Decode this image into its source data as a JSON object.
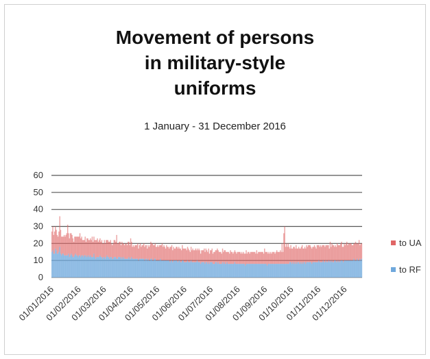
{
  "chart_data": {
    "type": "area",
    "title_lines": [
      "Movement of persons",
      "in military-style",
      "uniforms"
    ],
    "subtitle": "1 January - 31 December 2016",
    "ylim": [
      0,
      60
    ],
    "yticks": [
      0,
      10,
      20,
      30,
      40,
      50,
      60
    ],
    "grid": true,
    "stacked": true,
    "x_tick_labels": [
      "01/01/2016",
      "01/02/2016",
      "01/03/2016",
      "01/04/2016",
      "01/05/2016",
      "01/06/2016",
      "01/07/2016",
      "01/08/2016",
      "01/09/2016",
      "01/10/2016",
      "01/11/2016",
      "01/12/2016"
    ],
    "legend_position": "right",
    "series": [
      {
        "name": "to UA",
        "color": "#e06666",
        "values": [
          12,
          14,
          11,
          13,
          13,
          12,
          11,
          10,
          12,
          18,
          14,
          11,
          10,
          10,
          12,
          11,
          12,
          13,
          18,
          12,
          11,
          13,
          12,
          12,
          11,
          9,
          11,
          10,
          11,
          11,
          12,
          11,
          13,
          11,
          11,
          9,
          10,
          9,
          11,
          9,
          10,
          11,
          9,
          10,
          10,
          10,
          12,
          9,
          10,
          10,
          11,
          10,
          11,
          9,
          10,
          10,
          9,
          10,
          9,
          8,
          10,
          9,
          10,
          9,
          10,
          9,
          10,
          10,
          8,
          8,
          9,
          10,
          10,
          9,
          14,
          9,
          8,
          9,
          9,
          8,
          9,
          9,
          8,
          8,
          9,
          9,
          8,
          10,
          9,
          8,
          12,
          9,
          7,
          8,
          7,
          8,
          8,
          8,
          9,
          7,
          8,
          9,
          7,
          8,
          8,
          9,
          8,
          8,
          8,
          7,
          8,
          8,
          9,
          10,
          9,
          10,
          9,
          8,
          9,
          8,
          8,
          9,
          8,
          9,
          8,
          9,
          10,
          8,
          9,
          8,
          7,
          9,
          8,
          8,
          7,
          9,
          8,
          9,
          7,
          8,
          7,
          7,
          8,
          8,
          8,
          8,
          7,
          8,
          7,
          9,
          7,
          8,
          8,
          8,
          7,
          8,
          8,
          7,
          6,
          8,
          7,
          8,
          7,
          7,
          8,
          7,
          7,
          7,
          8,
          7,
          6,
          7,
          7,
          7,
          8,
          7,
          8,
          7,
          7,
          8,
          6,
          7,
          7,
          8,
          6,
          7,
          7,
          7,
          7,
          9,
          7,
          7,
          7,
          7,
          6,
          8,
          7,
          7,
          8,
          7,
          6,
          7,
          7,
          6,
          8,
          7,
          7,
          6,
          7,
          7,
          7,
          6,
          7,
          7,
          7,
          7,
          6,
          7,
          6,
          7,
          6,
          7,
          8,
          6,
          7,
          7,
          6,
          7,
          7,
          7,
          7,
          7,
          7,
          6,
          8,
          6,
          7,
          7,
          7,
          7,
          7,
          7,
          6,
          9,
          7,
          7,
          8,
          6,
          7,
          6,
          7,
          6,
          7,
          7,
          7,
          6,
          7,
          8,
          7,
          7,
          7,
          8,
          7,
          12,
          7,
          18,
          22,
          10,
          12,
          10,
          12,
          10,
          8,
          10,
          9,
          8,
          10,
          9,
          9,
          10,
          9,
          8,
          9,
          9,
          8,
          10,
          10,
          9,
          8,
          9,
          9,
          10,
          9,
          10,
          10,
          10,
          9,
          9,
          9,
          9,
          10,
          9,
          8,
          10,
          10,
          9,
          9,
          10,
          9,
          10,
          9,
          10,
          9,
          9,
          10,
          10,
          9,
          8,
          11,
          9,
          10,
          10,
          10,
          8,
          9,
          9,
          10,
          10,
          9,
          10,
          10,
          11,
          8,
          9,
          10,
          9,
          10,
          11,
          9,
          10,
          10,
          10,
          10,
          9,
          9,
          9,
          10,
          11,
          10,
          9,
          10,
          12,
          8,
          10,
          9,
          10,
          10,
          10,
          11,
          10,
          11
        ]
      },
      {
        "name": "to RF",
        "color": "#6fa8dc",
        "values": [
          15,
          16,
          14,
          14,
          17,
          16,
          14,
          14,
          15,
          18,
          14,
          13,
          14,
          14,
          13,
          13,
          13,
          13,
          13,
          14,
          12,
          13,
          14,
          13,
          12,
          12,
          13,
          14,
          13,
          13,
          12,
          13,
          13,
          12,
          13,
          13,
          12,
          13,
          13,
          12,
          13,
          12,
          13,
          12,
          13,
          12,
          12,
          12,
          14,
          12,
          11,
          12,
          12,
          12,
          12,
          13,
          12,
          12,
          11,
          12,
          12,
          11,
          12,
          13,
          12,
          12,
          11,
          12,
          12,
          11,
          11,
          12,
          12,
          12,
          11,
          11,
          12,
          12,
          12,
          11,
          12,
          11,
          12,
          11,
          11,
          11,
          11,
          11,
          12,
          11,
          11,
          12,
          11,
          11,
          11,
          11,
          11,
          11,
          11,
          10,
          11,
          11,
          11,
          11,
          11,
          11,
          10,
          11,
          11,
          10,
          11,
          10,
          10,
          11,
          11,
          10,
          10,
          11,
          11,
          10,
          10,
          10,
          10,
          10,
          11,
          10,
          10,
          10,
          10,
          10,
          10,
          10,
          10,
          10,
          10,
          9,
          10,
          10,
          9,
          10,
          10,
          10,
          10,
          10,
          9,
          10,
          10,
          9,
          9,
          10,
          10,
          9,
          9,
          9,
          9,
          10,
          9,
          9,
          9,
          10,
          9,
          9,
          9,
          9,
          9,
          9,
          10,
          9,
          9,
          9,
          8,
          9,
          9,
          9,
          9,
          8,
          9,
          9,
          8,
          9,
          8,
          9,
          9,
          9,
          8,
          8,
          8,
          9,
          9,
          8,
          9,
          8,
          8,
          8,
          8,
          9,
          8,
          9,
          8,
          8,
          9,
          8,
          8,
          8,
          8,
          8,
          8,
          8,
          8,
          9,
          8,
          8,
          8,
          8,
          8,
          8,
          8,
          8,
          8,
          8,
          8,
          7,
          8,
          8,
          8,
          8,
          8,
          8,
          8,
          8,
          8,
          8,
          8,
          8,
          8,
          8,
          8,
          8,
          8,
          8,
          8,
          8,
          8,
          8,
          8,
          8,
          7,
          8,
          8,
          8,
          8,
          8,
          8,
          8,
          8,
          8,
          8,
          8,
          8,
          8,
          8,
          8,
          8,
          8,
          8,
          8,
          8,
          8,
          8,
          8,
          8,
          8,
          9,
          9,
          8,
          9,
          8,
          9,
          8,
          9,
          8,
          9,
          9,
          8,
          9,
          8,
          9,
          8,
          9,
          9,
          8,
          9,
          9,
          9,
          9,
          9,
          9,
          8,
          9,
          9,
          9,
          9,
          9,
          9,
          9,
          10,
          9,
          9,
          9,
          9,
          10,
          9,
          9,
          10,
          9,
          9,
          10,
          9,
          10,
          9,
          10,
          9,
          9,
          10,
          10,
          9,
          10,
          9,
          10,
          9,
          10,
          10,
          10,
          9,
          10,
          10,
          10,
          10,
          10,
          10,
          10,
          10,
          10,
          10,
          10,
          11,
          10,
          10,
          10,
          11,
          10,
          10,
          11,
          10,
          11
        ]
      }
    ]
  }
}
